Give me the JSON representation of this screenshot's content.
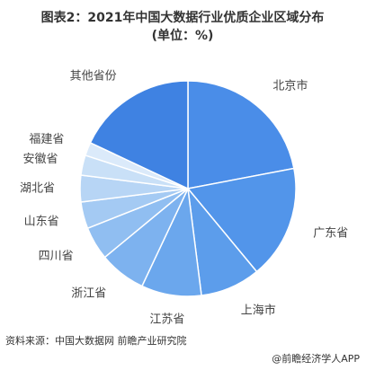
{
  "chart_data": {
    "type": "pie",
    "title": "图表2：2021年中国大数据行业优质企业区域分布",
    "subtitle": "(单位：%)",
    "categories": [
      "北京市",
      "广东省",
      "上海市",
      "江苏省",
      "浙江省",
      "四川省",
      "山东省",
      "湖北省",
      "安徽省",
      "福建省",
      "其他省份"
    ],
    "values": [
      22,
      17,
      9,
      9,
      7,
      5,
      4,
      4,
      3,
      2,
      18
    ],
    "colors": [
      "#4a8de8",
      "#5295ea",
      "#5c9deb",
      "#6ba7ed",
      "#7db2ef",
      "#90bef1",
      "#a4caf3",
      "#b7d5f5",
      "#c9e0f7",
      "#dbeafa",
      "#3f82e2"
    ],
    "source": "资料来源：中国大数据网 前瞻产业研究院",
    "footer": "@前瞻经济学人APP"
  }
}
